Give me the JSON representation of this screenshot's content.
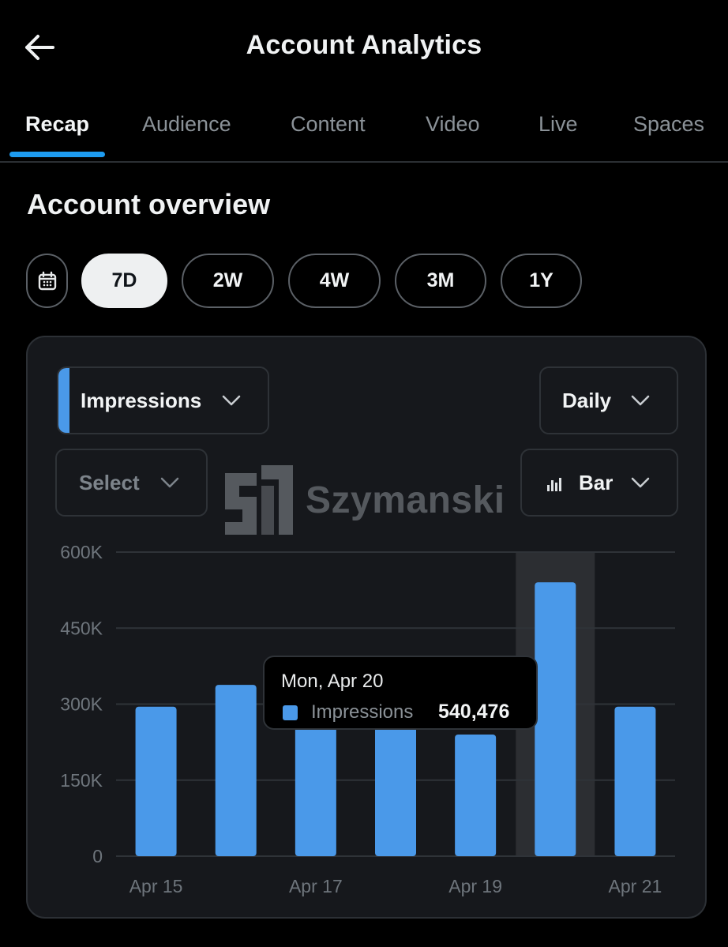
{
  "header": {
    "title": "Account Analytics",
    "back_icon": "arrow-left-icon"
  },
  "tabs": [
    {
      "label": "Recap",
      "active": true
    },
    {
      "label": "Audience",
      "active": false
    },
    {
      "label": "Content",
      "active": false
    },
    {
      "label": "Video",
      "active": false
    },
    {
      "label": "Live",
      "active": false
    },
    {
      "label": "Spaces",
      "active": false
    }
  ],
  "overview": {
    "title": "Account overview",
    "calendar_icon": "calendar-icon",
    "ranges": [
      {
        "label": "7D",
        "active": true
      },
      {
        "label": "2W",
        "active": false
      },
      {
        "label": "4W",
        "active": false
      },
      {
        "label": "3M",
        "active": false
      },
      {
        "label": "1Y",
        "active": false
      }
    ]
  },
  "controls": {
    "metric": "Impressions",
    "interval": "Daily",
    "compare": "Select",
    "chart_type": "Bar",
    "chart_type_icon": "bar-chart-icon"
  },
  "watermark": {
    "text": "Szymanski"
  },
  "tooltip": {
    "date": "Mon, Apr 20",
    "label": "Impressions",
    "value": "540,476"
  },
  "colors": {
    "accent": "#1d9bf0",
    "bar": "#4a99e9",
    "highlight": "#2c2e32",
    "background": "#000000",
    "card": "#16181c"
  },
  "chart_data": {
    "type": "bar",
    "categories": [
      "Apr 15",
      "Apr 16",
      "Apr 17",
      "Apr 18",
      "Apr 19",
      "Apr 20",
      "Apr 21"
    ],
    "x_tick_labels": [
      "Apr 15",
      "Apr 17",
      "Apr 19",
      "Apr 21"
    ],
    "series": [
      {
        "name": "Impressions",
        "values": [
          295000,
          338000,
          285000,
          262000,
          240000,
          540476,
          295000
        ]
      }
    ],
    "y_ticks": [
      "600K",
      "450K",
      "300K",
      "150K",
      "0"
    ],
    "ylim": [
      0,
      600000
    ],
    "highlighted_category": "Apr 20",
    "grid": true
  }
}
